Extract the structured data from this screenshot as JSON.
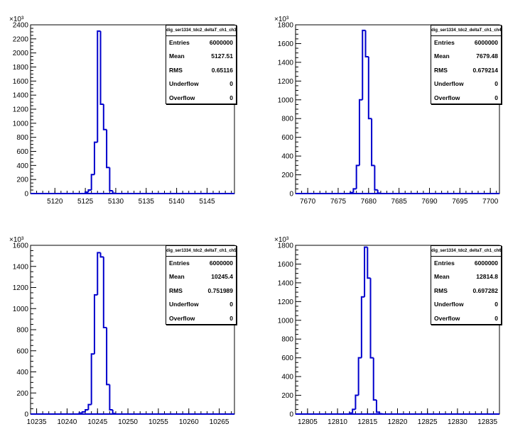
{
  "chart_data": [
    {
      "type": "histogram",
      "stats": {
        "title": "dig_ser1334_tdc2_deltaT_ch1_ch3",
        "rows": [
          {
            "label": "Entries",
            "value": "6000000"
          },
          {
            "label": "Mean",
            "value": "5127.51"
          },
          {
            "label": "RMS",
            "value": "0.65116"
          },
          {
            "label": "Underflow",
            "value": "0"
          },
          {
            "label": "Overflow",
            "value": "0"
          }
        ]
      },
      "y_exponent": "×10³",
      "xlim": [
        5116,
        5149.5
      ],
      "ylim": [
        0,
        2400
      ],
      "x_ticks": [
        "5120",
        "5125",
        "5130",
        "5135",
        "5140",
        "5145"
      ],
      "x_tick_values": [
        5120,
        5125,
        5130,
        5135,
        5140,
        5145
      ],
      "x_minor_step": 1,
      "y_ticks": [
        "0",
        "200",
        "400",
        "600",
        "800",
        "1000",
        "1200",
        "1400",
        "1600",
        "1800",
        "2000",
        "2200",
        "2400"
      ],
      "y_tick_values": [
        0,
        200,
        400,
        600,
        800,
        1000,
        1200,
        1400,
        1600,
        1800,
        2000,
        2200,
        2400
      ],
      "bin_width": 0.5,
      "bins": [
        {
          "x": 5125.0,
          "y": 20
        },
        {
          "x": 5125.5,
          "y": 50
        },
        {
          "x": 5126.0,
          "y": 270
        },
        {
          "x": 5126.5,
          "y": 730
        },
        {
          "x": 5127.0,
          "y": 2310
        },
        {
          "x": 5127.5,
          "y": 1270
        },
        {
          "x": 5128.0,
          "y": 910
        },
        {
          "x": 5128.5,
          "y": 370
        },
        {
          "x": 5129.0,
          "y": 40
        },
        {
          "x": 5129.5,
          "y": 5
        }
      ]
    },
    {
      "type": "histogram",
      "stats": {
        "title": "dig_ser1334_tdc2_deltaT_ch1_ch4",
        "rows": [
          {
            "label": "Entries",
            "value": "6000000"
          },
          {
            "label": "Mean",
            "value": "7679.48"
          },
          {
            "label": "RMS",
            "value": "0.679214"
          },
          {
            "label": "Underflow",
            "value": "0"
          },
          {
            "label": "Overflow",
            "value": "0"
          }
        ]
      },
      "y_exponent": "×10³",
      "xlim": [
        7668,
        7701.5
      ],
      "ylim": [
        0,
        1800
      ],
      "x_ticks": [
        "7670",
        "7675",
        "7680",
        "7685",
        "7690",
        "7695",
        "7700"
      ],
      "x_tick_values": [
        7670,
        7675,
        7680,
        7685,
        7690,
        7695,
        7700
      ],
      "x_minor_step": 1,
      "y_ticks": [
        "0",
        "200",
        "400",
        "600",
        "800",
        "1000",
        "1200",
        "1400",
        "1600",
        "1800"
      ],
      "y_tick_values": [
        0,
        200,
        400,
        600,
        800,
        1000,
        1200,
        1400,
        1600,
        1800
      ],
      "bin_width": 0.5,
      "bins": [
        {
          "x": 7677.0,
          "y": 10
        },
        {
          "x": 7677.5,
          "y": 50
        },
        {
          "x": 7678.0,
          "y": 300
        },
        {
          "x": 7678.5,
          "y": 1000
        },
        {
          "x": 7679.0,
          "y": 1740
        },
        {
          "x": 7679.5,
          "y": 1460
        },
        {
          "x": 7680.0,
          "y": 800
        },
        {
          "x": 7680.5,
          "y": 300
        },
        {
          "x": 7681.0,
          "y": 40
        },
        {
          "x": 7681.5,
          "y": 5
        }
      ]
    },
    {
      "type": "histogram",
      "stats": {
        "title": "dig_ser1334_tdc2_deltaT_ch1_ch5",
        "rows": [
          {
            "label": "Entries",
            "value": "6000000"
          },
          {
            "label": "Mean",
            "value": "10245.4"
          },
          {
            "label": "RMS",
            "value": "0.751989"
          },
          {
            "label": "Underflow",
            "value": "0"
          },
          {
            "label": "Overflow",
            "value": "0"
          }
        ]
      },
      "y_exponent": "×10³",
      "xlim": [
        10234,
        10267.5
      ],
      "ylim": [
        0,
        1600
      ],
      "x_ticks": [
        "10235",
        "10240",
        "10245",
        "10250",
        "10255",
        "10260",
        "10265"
      ],
      "x_tick_values": [
        10235,
        10240,
        10245,
        10250,
        10255,
        10260,
        10265
      ],
      "x_minor_step": 1,
      "y_ticks": [
        "0",
        "200",
        "400",
        "600",
        "800",
        "1000",
        "1200",
        "1400",
        "1600"
      ],
      "y_tick_values": [
        0,
        200,
        400,
        600,
        800,
        1000,
        1200,
        1400,
        1600
      ],
      "bin_width": 0.5,
      "bins": [
        {
          "x": 10242.0,
          "y": 10
        },
        {
          "x": 10242.5,
          "y": 20
        },
        {
          "x": 10243.0,
          "y": 40
        },
        {
          "x": 10243.5,
          "y": 90
        },
        {
          "x": 10244.0,
          "y": 570
        },
        {
          "x": 10244.5,
          "y": 1130
        },
        {
          "x": 10245.0,
          "y": 1530
        },
        {
          "x": 10245.5,
          "y": 1490
        },
        {
          "x": 10246.0,
          "y": 820
        },
        {
          "x": 10246.5,
          "y": 280
        },
        {
          "x": 10247.0,
          "y": 40
        },
        {
          "x": 10247.5,
          "y": 5
        }
      ]
    },
    {
      "type": "histogram",
      "stats": {
        "title": "dig_ser1334_tdc2_deltaT_ch1_ch6",
        "rows": [
          {
            "label": "Entries",
            "value": "6000000"
          },
          {
            "label": "Mean",
            "value": "12814.8"
          },
          {
            "label": "RMS",
            "value": "0.697282"
          },
          {
            "label": "Underflow",
            "value": "0"
          },
          {
            "label": "Overflow",
            "value": "0"
          }
        ]
      },
      "y_exponent": "×10³",
      "xlim": [
        12803,
        12837
      ],
      "ylim": [
        0,
        1800
      ],
      "x_ticks": [
        "12805",
        "12810",
        "12815",
        "12820",
        "12825",
        "12830",
        "12835"
      ],
      "x_tick_values": [
        12805,
        12810,
        12815,
        12820,
        12825,
        12830,
        12835
      ],
      "x_minor_step": 1,
      "y_ticks": [
        "0",
        "200",
        "400",
        "600",
        "800",
        "1000",
        "1200",
        "1400",
        "1600",
        "1800"
      ],
      "y_tick_values": [
        0,
        200,
        400,
        600,
        800,
        1000,
        1200,
        1400,
        1600,
        1800
      ],
      "bin_width": 0.5,
      "bins": [
        {
          "x": 12812.0,
          "y": 10
        },
        {
          "x": 12812.5,
          "y": 50
        },
        {
          "x": 12813.0,
          "y": 200
        },
        {
          "x": 12813.5,
          "y": 600
        },
        {
          "x": 12814.0,
          "y": 1250
        },
        {
          "x": 12814.5,
          "y": 1780
        },
        {
          "x": 12815.0,
          "y": 1450
        },
        {
          "x": 12815.5,
          "y": 600
        },
        {
          "x": 12816.0,
          "y": 150
        },
        {
          "x": 12816.5,
          "y": 20
        },
        {
          "x": 12817.0,
          "y": 3
        }
      ]
    }
  ]
}
